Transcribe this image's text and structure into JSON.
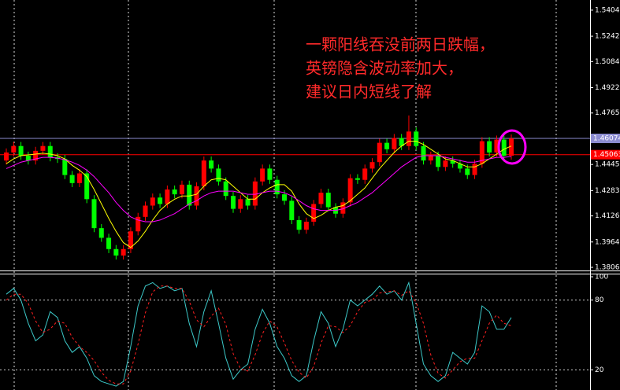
{
  "chart_data": [
    {
      "type": "candlestick",
      "annotation": [
        "一颗阳线吞没前两日跌幅，",
        "英镑隐含波动率加大，",
        "建议日内短线了解"
      ],
      "annotation_color": "#ff2a2a",
      "up_color": "#ff0000",
      "down_color": "#00ff00",
      "open": [
        1.447,
        1.452,
        1.456,
        1.45,
        1.447,
        1.453,
        1.456,
        1.449,
        1.448,
        1.438,
        1.433,
        1.439,
        1.423,
        1.405,
        1.399,
        1.392,
        1.388,
        1.392,
        1.403,
        1.412,
        1.419,
        1.424,
        1.42,
        1.429,
        1.426,
        1.432,
        1.419,
        1.431,
        1.447,
        1.442,
        1.434,
        1.425,
        1.417,
        1.423,
        1.419,
        1.434,
        1.442,
        1.435,
        1.426,
        1.422,
        1.41,
        1.404,
        1.409,
        1.42,
        1.427,
        1.418,
        1.414,
        1.421,
        1.436,
        1.435,
        1.442,
        1.446,
        1.458,
        1.454,
        1.461,
        1.456,
        1.465,
        1.456,
        1.447,
        1.45,
        1.443,
        1.447,
        1.445,
        1.442,
        1.438,
        1.445,
        1.459,
        1.452,
        1.46,
        1.45
      ],
      "high": [
        1.4545,
        1.4585,
        1.4585,
        1.4525,
        1.4555,
        1.4585,
        1.4585,
        1.4515,
        1.4505,
        1.4405,
        1.4415,
        1.4415,
        1.4255,
        1.4075,
        1.4015,
        1.3945,
        1.3945,
        1.4055,
        1.4145,
        1.4215,
        1.4265,
        1.4265,
        1.4315,
        1.4315,
        1.4345,
        1.4345,
        1.4335,
        1.4495,
        1.4495,
        1.4445,
        1.4365,
        1.4275,
        1.4255,
        1.4255,
        1.4365,
        1.4445,
        1.4445,
        1.4375,
        1.4285,
        1.4245,
        1.4125,
        1.4115,
        1.4225,
        1.4295,
        1.4295,
        1.4205,
        1.4235,
        1.4385,
        1.4385,
        1.4445,
        1.4485,
        1.4605,
        1.4605,
        1.4635,
        1.4635,
        1.475,
        1.4675,
        1.4585,
        1.4525,
        1.4525,
        1.4495,
        1.4495,
        1.4475,
        1.4445,
        1.4475,
        1.4615,
        1.4615,
        1.4625,
        1.4625,
        1.4632
      ],
      "low": [
        1.4445,
        1.4495,
        1.4475,
        1.4445,
        1.4445,
        1.4505,
        1.4465,
        1.4455,
        1.4355,
        1.4305,
        1.4305,
        1.4205,
        1.4025,
        1.3965,
        1.3895,
        1.3855,
        1.3855,
        1.3895,
        1.4005,
        1.4095,
        1.4165,
        1.4175,
        1.4175,
        1.4235,
        1.4235,
        1.4165,
        1.4165,
        1.4285,
        1.4395,
        1.4315,
        1.4225,
        1.4145,
        1.4145,
        1.4165,
        1.4165,
        1.4315,
        1.4325,
        1.4235,
        1.4195,
        1.4075,
        1.4015,
        1.4015,
        1.4065,
        1.4175,
        1.4155,
        1.4115,
        1.4115,
        1.4185,
        1.4325,
        1.4325,
        1.4395,
        1.4435,
        1.4515,
        1.4515,
        1.4535,
        1.4535,
        1.4535,
        1.4445,
        1.4445,
        1.4405,
        1.4405,
        1.4425,
        1.4395,
        1.4355,
        1.4355,
        1.4425,
        1.4495,
        1.4495,
        1.4475,
        1.4475
      ],
      "close": [
        1.452,
        1.456,
        1.45,
        1.447,
        1.453,
        1.456,
        1.449,
        1.448,
        1.438,
        1.433,
        1.439,
        1.423,
        1.405,
        1.399,
        1.392,
        1.388,
        1.392,
        1.403,
        1.412,
        1.419,
        1.424,
        1.42,
        1.429,
        1.426,
        1.432,
        1.419,
        1.431,
        1.447,
        1.442,
        1.434,
        1.425,
        1.417,
        1.423,
        1.419,
        1.434,
        1.442,
        1.435,
        1.426,
        1.422,
        1.41,
        1.404,
        1.409,
        1.42,
        1.427,
        1.418,
        1.414,
        1.421,
        1.436,
        1.435,
        1.442,
        1.446,
        1.458,
        1.454,
        1.461,
        1.456,
        1.465,
        1.456,
        1.447,
        1.45,
        1.443,
        1.447,
        1.445,
        1.442,
        1.438,
        1.445,
        1.459,
        1.452,
        1.46,
        1.45,
        1.4607
      ],
      "series": [
        {
          "color": "#ffff00",
          "values": [
            1.445,
            1.448,
            1.45,
            1.4505,
            1.451,
            1.4515,
            1.451,
            1.45,
            1.448,
            1.444,
            1.441,
            1.437,
            1.429,
            1.42,
            1.411,
            1.403,
            1.396,
            1.393,
            1.397,
            1.403,
            1.41,
            1.416,
            1.42,
            1.423,
            1.425,
            1.425,
            1.426,
            1.431,
            1.435,
            1.436,
            1.435,
            1.431,
            1.427,
            1.423,
            1.423,
            1.427,
            1.43,
            1.432,
            1.432,
            1.428,
            1.42,
            1.414,
            1.411,
            1.413,
            1.416,
            1.418,
            1.419,
            1.422,
            1.426,
            1.43,
            1.436,
            1.442,
            1.447,
            1.452,
            1.456,
            1.459,
            1.459,
            1.457,
            1.454,
            1.451,
            1.448,
            1.447,
            1.445,
            1.443,
            1.443,
            1.445,
            1.448,
            1.451,
            1.454,
            1.456
          ]
        },
        {
          "color": "#ff00ff",
          "values": [
            1.442,
            1.444,
            1.446,
            1.447,
            1.448,
            1.449,
            1.449,
            1.4485,
            1.4475,
            1.446,
            1.444,
            1.441,
            1.437,
            1.432,
            1.427,
            1.421,
            1.416,
            1.412,
            1.41,
            1.409,
            1.409,
            1.41,
            1.412,
            1.414,
            1.417,
            1.42,
            1.422,
            1.425,
            1.427,
            1.428,
            1.428,
            1.428,
            1.427,
            1.426,
            1.426,
            1.427,
            1.428,
            1.428,
            1.427,
            1.425,
            1.422,
            1.419,
            1.417,
            1.416,
            1.416,
            1.416,
            1.417,
            1.419,
            1.421,
            1.424,
            1.427,
            1.431,
            1.435,
            1.439,
            1.443,
            1.446,
            1.449,
            1.45,
            1.45,
            1.45,
            1.449,
            1.448,
            1.447,
            1.446,
            1.446,
            1.447,
            1.448,
            1.449,
            1.449,
            1.4495
          ]
        }
      ],
      "ylim": [
        1.3787,
        1.5467
      ],
      "yticks": [
        {
          "value": 1.5404,
          "label": "1.54040"
        },
        {
          "value": 1.5242,
          "label": "1.52420"
        },
        {
          "value": 1.50845,
          "label": "1.50845"
        },
        {
          "value": 1.49225,
          "label": "1.49225"
        },
        {
          "value": 1.4765,
          "label": "1.47650"
        },
        {
          "value": 1.44455,
          "label": "1.44455"
        },
        {
          "value": 1.42835,
          "label": "1.42835"
        },
        {
          "value": 1.4126,
          "label": "1.41260"
        },
        {
          "value": 1.3964,
          "label": "1.39640"
        },
        {
          "value": 1.38065,
          "label": "1.38065"
        }
      ],
      "price_lines": [
        {
          "value": 1.46074,
          "label": "1.46074",
          "color": "#8c8cd0"
        },
        {
          "value": 1.45063,
          "label": "1.45063",
          "color": "#ff0000"
        }
      ]
    },
    {
      "type": "line",
      "series": [
        {
          "color": "#3cc8c8",
          "values": [
            85,
            90,
            80,
            60,
            45,
            50,
            70,
            65,
            45,
            35,
            40,
            30,
            15,
            10,
            8,
            6,
            10,
            40,
            75,
            92,
            95,
            90,
            92,
            88,
            90,
            60,
            40,
            70,
            88,
            60,
            30,
            12,
            20,
            25,
            55,
            72,
            60,
            40,
            30,
            15,
            10,
            15,
            45,
            70,
            60,
            40,
            55,
            80,
            75,
            80,
            85,
            92,
            85,
            88,
            80,
            95,
            60,
            25,
            15,
            10,
            15,
            35,
            30,
            25,
            35,
            75,
            70,
            55,
            55,
            65
          ]
        },
        {
          "color": "#ff2020",
          "dashed": true,
          "values": [
            80,
            85,
            85,
            77,
            62,
            52,
            55,
            62,
            60,
            48,
            40,
            35,
            28,
            18,
            11,
            8,
            8,
            19,
            42,
            69,
            87,
            92,
            92,
            90,
            90,
            79,
            63,
            57,
            66,
            73,
            59,
            34,
            21,
            19,
            33,
            51,
            62,
            57,
            43,
            28,
            18,
            13,
            23,
            43,
            58,
            57,
            52,
            58,
            70,
            78,
            80,
            86,
            87,
            88,
            84,
            88,
            78,
            60,
            33,
            17,
            13,
            20,
            27,
            30,
            30,
            45,
            60,
            67,
            60,
            58
          ]
        }
      ],
      "ylim": [
        0,
        100
      ],
      "yticks": [
        100,
        80,
        20
      ]
    }
  ]
}
